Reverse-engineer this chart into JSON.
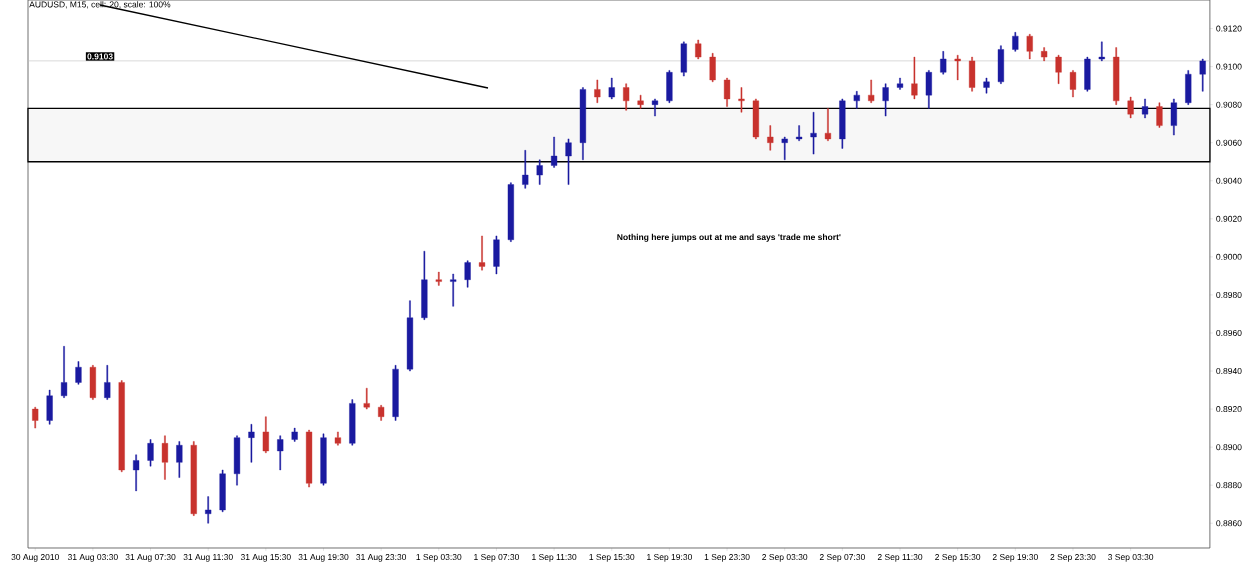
{
  "chart_data": {
    "type": "candlestick",
    "title": "AUDUSD, M15, cell: 20, scale: 100%",
    "annotations": [
      "Nothing here jumps out at me and says 'trade me short'"
    ],
    "categories": [
      "30 Aug 2010",
      null,
      null,
      null,
      "31 Aug 03:30",
      null,
      null,
      null,
      "31 Aug 07:30",
      null,
      null,
      null,
      "31 Aug 11:30",
      null,
      null,
      null,
      "31 Aug 15:30",
      null,
      null,
      null,
      "31 Aug 19:30",
      null,
      null,
      null,
      "31 Aug 23:30",
      null,
      null,
      null,
      "1 Sep 03:30",
      null,
      null,
      null,
      "1 Sep 07:30",
      null,
      null,
      null,
      "1 Sep 11:30",
      null,
      null,
      null,
      "1 Sep 15:30",
      null,
      null,
      null,
      "1 Sep 19:30",
      null,
      null,
      null,
      "1 Sep 23:30",
      null,
      null,
      null,
      "2 Sep 03:30",
      null,
      null,
      null,
      "2 Sep 07:30",
      null,
      null,
      null,
      "2 Sep 11:30",
      null,
      null,
      null,
      "2 Sep 15:30",
      null,
      null,
      null,
      "2 Sep 19:30",
      null,
      null,
      null,
      "2 Sep 23:30",
      null,
      null,
      null,
      "3 Sep 03:30",
      null,
      null,
      null,
      null,
      null
    ],
    "ohlc": [
      [
        0.892,
        0.8921,
        0.891,
        0.8914
      ],
      [
        0.8914,
        0.893,
        0.8912,
        0.8927
      ],
      [
        0.8927,
        0.8953,
        0.8926,
        0.8934
      ],
      [
        0.8934,
        0.8945,
        0.8933,
        0.8942
      ],
      [
        0.8942,
        0.8943,
        0.8925,
        0.8926
      ],
      [
        0.8926,
        0.8943,
        0.8925,
        0.8934
      ],
      [
        0.8934,
        0.8935,
        0.8887,
        0.8888
      ],
      [
        0.8888,
        0.8896,
        0.8877,
        0.8893
      ],
      [
        0.8893,
        0.8904,
        0.889,
        0.8902
      ],
      [
        0.8902,
        0.8906,
        0.8883,
        0.8892
      ],
      [
        0.8892,
        0.8903,
        0.8884,
        0.8901
      ],
      [
        0.8901,
        0.8903,
        0.8864,
        0.8865
      ],
      [
        0.8865,
        0.8874,
        0.886,
        0.8867
      ],
      [
        0.8867,
        0.8888,
        0.8866,
        0.8886
      ],
      [
        0.8886,
        0.8906,
        0.888,
        0.8905
      ],
      [
        0.8905,
        0.8912,
        0.8892,
        0.8908
      ],
      [
        0.8908,
        0.8916,
        0.8897,
        0.8898
      ],
      [
        0.8898,
        0.8906,
        0.8888,
        0.8904
      ],
      [
        0.8904,
        0.891,
        0.8903,
        0.8908
      ],
      [
        0.8908,
        0.8909,
        0.8879,
        0.8881
      ],
      [
        0.8881,
        0.8907,
        0.888,
        0.8905
      ],
      [
        0.8905,
        0.8908,
        0.8901,
        0.8902
      ],
      [
        0.8902,
        0.8925,
        0.8901,
        0.8923
      ],
      [
        0.8923,
        0.8931,
        0.892,
        0.8921
      ],
      [
        0.8921,
        0.8922,
        0.8914,
        0.8916
      ],
      [
        0.8916,
        0.8943,
        0.8914,
        0.8941
      ],
      [
        0.8941,
        0.8977,
        0.894,
        0.8968
      ],
      [
        0.8968,
        0.9003,
        0.8967,
        0.8988
      ],
      [
        0.8988,
        0.8992,
        0.8985,
        0.8987
      ],
      [
        0.8987,
        0.8991,
        0.8974,
        0.8988
      ],
      [
        0.8988,
        0.8998,
        0.8984,
        0.8997
      ],
      [
        0.8997,
        0.9011,
        0.8993,
        0.8995
      ],
      [
        0.8995,
        0.9011,
        0.8991,
        0.9009
      ],
      [
        0.9009,
        0.9039,
        0.9008,
        0.9038
      ],
      [
        0.9038,
        0.9056,
        0.9036,
        0.9043
      ],
      [
        0.9043,
        0.9051,
        0.9038,
        0.9048
      ],
      [
        0.9048,
        0.9063,
        0.9047,
        0.9053
      ],
      [
        0.9053,
        0.9062,
        0.9038,
        0.906
      ],
      [
        0.906,
        0.9089,
        0.9051,
        0.9088
      ],
      [
        0.9088,
        0.9093,
        0.9081,
        0.9084
      ],
      [
        0.9084,
        0.9094,
        0.9083,
        0.9089
      ],
      [
        0.9089,
        0.9091,
        0.9077,
        0.9082
      ],
      [
        0.9082,
        0.9085,
        0.9078,
        0.908
      ],
      [
        0.908,
        0.9083,
        0.9074,
        0.9082
      ],
      [
        0.9082,
        0.9098,
        0.9081,
        0.9097
      ],
      [
        0.9097,
        0.9113,
        0.9095,
        0.9112
      ],
      [
        0.9112,
        0.9114,
        0.9104,
        0.9105
      ],
      [
        0.9105,
        0.9107,
        0.9092,
        0.9093
      ],
      [
        0.9093,
        0.9094,
        0.9079,
        0.9083
      ],
      [
        0.9083,
        0.9089,
        0.9076,
        0.9082
      ],
      [
        0.9082,
        0.9083,
        0.9062,
        0.9063
      ],
      [
        0.9063,
        0.9069,
        0.9056,
        0.906
      ],
      [
        0.906,
        0.9063,
        0.9051,
        0.9062
      ],
      [
        0.9062,
        0.9069,
        0.9061,
        0.9063
      ],
      [
        0.9063,
        0.9076,
        0.9054,
        0.9065
      ],
      [
        0.9065,
        0.9078,
        0.9061,
        0.9062
      ],
      [
        0.9062,
        0.9083,
        0.9057,
        0.9082
      ],
      [
        0.9082,
        0.9087,
        0.9078,
        0.9085
      ],
      [
        0.9085,
        0.9093,
        0.9081,
        0.9082
      ],
      [
        0.9082,
        0.9091,
        0.9074,
        0.9089
      ],
      [
        0.9089,
        0.9094,
        0.9088,
        0.9091
      ],
      [
        0.9091,
        0.9105,
        0.9083,
        0.9085
      ],
      [
        0.9085,
        0.9098,
        0.9078,
        0.9097
      ],
      [
        0.9097,
        0.9108,
        0.9096,
        0.9104
      ],
      [
        0.9104,
        0.9106,
        0.9093,
        0.9103
      ],
      [
        0.9103,
        0.9105,
        0.9087,
        0.9089
      ],
      [
        0.9089,
        0.9094,
        0.9086,
        0.9092
      ],
      [
        0.9092,
        0.9111,
        0.9091,
        0.9109
      ],
      [
        0.9109,
        0.9118,
        0.9108,
        0.9116
      ],
      [
        0.9116,
        0.9117,
        0.9104,
        0.9108
      ],
      [
        0.9108,
        0.911,
        0.9103,
        0.9105
      ],
      [
        0.9105,
        0.9106,
        0.9091,
        0.9097
      ],
      [
        0.9097,
        0.9098,
        0.9084,
        0.9088
      ],
      [
        0.9088,
        0.9105,
        0.9087,
        0.9104
      ],
      [
        0.9104,
        0.9113,
        0.9103,
        0.9105
      ],
      [
        0.9105,
        0.911,
        0.908,
        0.9082
      ],
      [
        0.9082,
        0.9084,
        0.9073,
        0.9075
      ],
      [
        0.9075,
        0.9083,
        0.9073,
        0.9079
      ],
      [
        0.9079,
        0.9081,
        0.9068,
        0.9069
      ],
      [
        0.9069,
        0.9083,
        0.9064,
        0.9081
      ],
      [
        0.9081,
        0.9098,
        0.908,
        0.9096
      ],
      [
        0.9096,
        0.9104,
        0.9087,
        0.9103
      ]
    ],
    "colors": [
      "#c8322d",
      "#1a1aa0",
      "#1a1aa0",
      "#1a1aa0",
      "#c8322d",
      "#1a1aa0",
      "#c8322d",
      "#1a1aa0",
      "#1a1aa0",
      "#c8322d",
      "#1a1aa0",
      "#c8322d",
      "#1a1aa0",
      "#1a1aa0",
      "#1a1aa0",
      "#1a1aa0",
      "#c8322d",
      "#1a1aa0",
      "#1a1aa0",
      "#c8322d",
      "#1a1aa0",
      "#c8322d",
      "#1a1aa0",
      "#c8322d",
      "#c8322d",
      "#1a1aa0",
      "#1a1aa0",
      "#1a1aa0",
      "#c8322d",
      "#1a1aa0",
      "#1a1aa0",
      "#c8322d",
      "#1a1aa0",
      "#1a1aa0",
      "#1a1aa0",
      "#1a1aa0",
      "#1a1aa0",
      "#1a1aa0",
      "#1a1aa0",
      "#c8322d",
      "#1a1aa0",
      "#c8322d",
      "#c8322d",
      "#1a1aa0",
      "#1a1aa0",
      "#1a1aa0",
      "#c8322d",
      "#c8322d",
      "#c8322d",
      "#c8322d",
      "#c8322d",
      "#c8322d",
      "#1a1aa0",
      "#1a1aa0",
      "#1a1aa0",
      "#c8322d",
      "#1a1aa0",
      "#1a1aa0",
      "#c8322d",
      "#1a1aa0",
      "#1a1aa0",
      "#c8322d",
      "#1a1aa0",
      "#1a1aa0",
      "#c8322d",
      "#c8322d",
      "#1a1aa0",
      "#1a1aa0",
      "#1a1aa0",
      "#c8322d",
      "#c8322d",
      "#c8322d",
      "#c8322d",
      "#1a1aa0",
      "#1a1aa0",
      "#c8322d",
      "#c8322d",
      "#1a1aa0",
      "#c8322d",
      "#1a1aa0",
      "#1a1aa0",
      "#1a1aa0"
    ],
    "ylim": [
      0.8847,
      0.9135
    ],
    "yticks": [
      {
        "value": 0.886,
        "label": "0.8860"
      },
      {
        "value": 0.888,
        "label": "0.8880"
      },
      {
        "value": 0.89,
        "label": "0.8900"
      },
      {
        "value": 0.892,
        "label": "0.8920"
      },
      {
        "value": 0.894,
        "label": "0.8940"
      },
      {
        "value": 0.896,
        "label": "0.8960"
      },
      {
        "value": 0.898,
        "label": "0.8980"
      },
      {
        "value": 0.9,
        "label": "0.9000"
      },
      {
        "value": 0.902,
        "label": "0.9020"
      },
      {
        "value": 0.904,
        "label": "0.9040"
      },
      {
        "value": 0.906,
        "label": "0.9060"
      },
      {
        "value": 0.908,
        "label": "0.9080"
      },
      {
        "value": 0.91,
        "label": "0.9100"
      },
      {
        "value": 0.912,
        "label": "0.9120"
      }
    ],
    "ref_lines": [
      {
        "axis": "y",
        "value": 0.9103,
        "label": "0.9103",
        "color": "#c0c0c0"
      }
    ],
    "bands": [
      {
        "axis": "y",
        "from": 0.905,
        "to": 0.9078,
        "color": "#000000"
      }
    ]
  }
}
